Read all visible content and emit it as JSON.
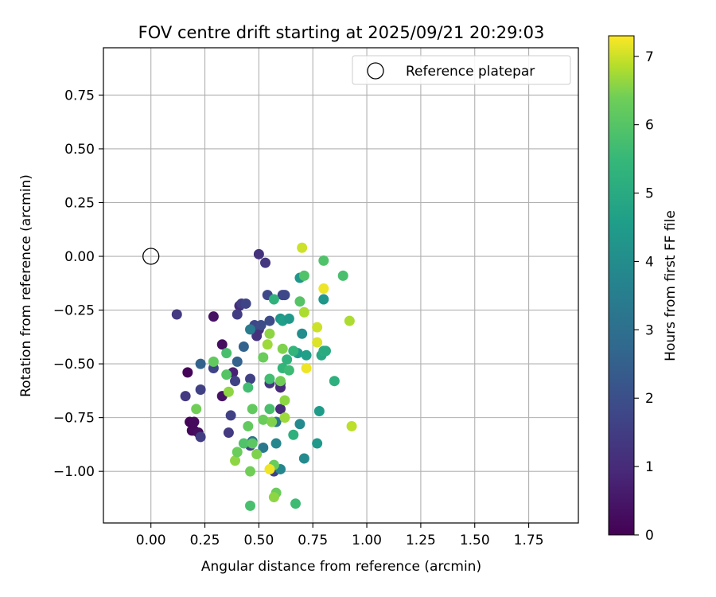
{
  "chart_data": {
    "type": "scatter",
    "title": "FOV centre drift starting at 2025/09/21 20:29:03",
    "xlabel": "Angular distance from reference (arcmin)",
    "ylabel": "Rotation from reference (arcmin)",
    "xlim": [
      -0.22,
      1.98
    ],
    "ylim": [
      -1.24,
      0.97
    ],
    "xticks": [
      0.0,
      0.25,
      0.5,
      0.75,
      1.0,
      1.25,
      1.5,
      1.75
    ],
    "xtick_labels": [
      "0.00",
      "0.25",
      "0.50",
      "0.75",
      "1.00",
      "1.25",
      "1.50",
      "1.75"
    ],
    "yticks": [
      -1.0,
      -0.75,
      -0.5,
      -0.25,
      0.0,
      0.25,
      0.5,
      0.75
    ],
    "ytick_labels": [
      "−1.00",
      "−0.75",
      "−0.50",
      "−0.25",
      "0.00",
      "0.25",
      "0.50",
      "0.75"
    ],
    "grid": true,
    "legend": {
      "placement": "top-right",
      "entries": [
        "Reference platepar"
      ]
    },
    "reference_point": {
      "x": 0.0,
      "y": 0.0,
      "label": "Reference platepar"
    },
    "colorbar": {
      "label": "Hours from first FF file",
      "colormap": "viridis",
      "min": 0,
      "max": 7.3,
      "ticks": [
        0,
        1,
        2,
        3,
        4,
        5,
        6,
        7
      ],
      "tick_labels": [
        "0",
        "1",
        "2",
        "3",
        "4",
        "5",
        "6",
        "7"
      ]
    },
    "points": [
      {
        "x": 0.17,
        "y": -0.54,
        "t": 0.1
      },
      {
        "x": 0.18,
        "y": -0.77,
        "t": 0.1
      },
      {
        "x": 0.19,
        "y": -0.81,
        "t": 0.15
      },
      {
        "x": 0.2,
        "y": -0.81,
        "t": 0.2
      },
      {
        "x": 0.2,
        "y": -0.77,
        "t": 0.2
      },
      {
        "x": 0.22,
        "y": -0.82,
        "t": 0.3
      },
      {
        "x": 0.29,
        "y": -0.28,
        "t": 0.4
      },
      {
        "x": 0.33,
        "y": -0.41,
        "t": 0.3
      },
      {
        "x": 0.33,
        "y": -0.65,
        "t": 0.4
      },
      {
        "x": 0.38,
        "y": -0.54,
        "t": 0.8
      },
      {
        "x": 0.41,
        "y": -0.23,
        "t": 1.0
      },
      {
        "x": 0.5,
        "y": 0.01,
        "t": 1.2
      },
      {
        "x": 0.53,
        "y": -0.03,
        "t": 1.3
      },
      {
        "x": 0.49,
        "y": -0.37,
        "t": 1.2
      },
      {
        "x": 0.5,
        "y": -0.34,
        "t": 1.1
      },
      {
        "x": 0.55,
        "y": -0.59,
        "t": 1.3
      },
      {
        "x": 0.6,
        "y": -0.59,
        "t": 1.2
      },
      {
        "x": 0.6,
        "y": -0.61,
        "t": 1.0
      },
      {
        "x": 0.6,
        "y": -0.71,
        "t": 1.0
      },
      {
        "x": 0.12,
        "y": -0.27,
        "t": 1.4
      },
      {
        "x": 0.16,
        "y": -0.65,
        "t": 1.4
      },
      {
        "x": 0.23,
        "y": -0.84,
        "t": 1.5
      },
      {
        "x": 0.23,
        "y": -0.62,
        "t": 1.6
      },
      {
        "x": 0.29,
        "y": -0.52,
        "t": 1.7
      },
      {
        "x": 0.36,
        "y": -0.82,
        "t": 1.4
      },
      {
        "x": 0.37,
        "y": -0.74,
        "t": 1.6
      },
      {
        "x": 0.39,
        "y": -0.58,
        "t": 1.6
      },
      {
        "x": 0.4,
        "y": -0.27,
        "t": 1.5
      },
      {
        "x": 0.42,
        "y": -0.22,
        "t": 1.5
      },
      {
        "x": 0.44,
        "y": -0.22,
        "t": 1.7
      },
      {
        "x": 0.46,
        "y": -0.57,
        "t": 1.6
      },
      {
        "x": 0.46,
        "y": -0.88,
        "t": 1.6
      },
      {
        "x": 0.48,
        "y": -0.32,
        "t": 1.8
      },
      {
        "x": 0.51,
        "y": -0.32,
        "t": 1.9
      },
      {
        "x": 0.54,
        "y": -0.18,
        "t": 1.8
      },
      {
        "x": 0.55,
        "y": -0.3,
        "t": 1.9
      },
      {
        "x": 0.57,
        "y": -1.0,
        "t": 1.6
      },
      {
        "x": 0.61,
        "y": -0.18,
        "t": 1.7
      },
      {
        "x": 0.62,
        "y": -0.18,
        "t": 1.8
      },
      {
        "x": 0.23,
        "y": -0.5,
        "t": 2.6
      },
      {
        "x": 0.4,
        "y": -0.49,
        "t": 2.6
      },
      {
        "x": 0.43,
        "y": -0.42,
        "t": 2.6
      },
      {
        "x": 0.46,
        "y": -0.34,
        "t": 3.4
      },
      {
        "x": 0.47,
        "y": -0.86,
        "t": 3.1
      },
      {
        "x": 0.52,
        "y": -0.89,
        "t": 3.3
      },
      {
        "x": 0.58,
        "y": -0.77,
        "t": 3.2
      },
      {
        "x": 0.58,
        "y": -0.87,
        "t": 3.8
      },
      {
        "x": 0.6,
        "y": -0.99,
        "t": 3.8
      },
      {
        "x": 0.6,
        "y": -0.29,
        "t": 4.3
      },
      {
        "x": 0.61,
        "y": -0.3,
        "t": 4.6
      },
      {
        "x": 0.64,
        "y": -0.29,
        "t": 4.4
      },
      {
        "x": 0.68,
        "y": -0.45,
        "t": 4.5
      },
      {
        "x": 0.69,
        "y": -0.78,
        "t": 3.9
      },
      {
        "x": 0.69,
        "y": -0.1,
        "t": 4.3
      },
      {
        "x": 0.7,
        "y": -0.36,
        "t": 4.0
      },
      {
        "x": 0.71,
        "y": -0.94,
        "t": 3.9
      },
      {
        "x": 0.72,
        "y": -0.46,
        "t": 4.6
      },
      {
        "x": 0.77,
        "y": -0.87,
        "t": 4.4
      },
      {
        "x": 0.78,
        "y": -0.72,
        "t": 4.5
      },
      {
        "x": 0.79,
        "y": -0.46,
        "t": 4.9
      },
      {
        "x": 0.8,
        "y": -0.2,
        "t": 4.3
      },
      {
        "x": 0.8,
        "y": -0.44,
        "t": 5.1
      },
      {
        "x": 0.81,
        "y": -0.44,
        "t": 5.0
      },
      {
        "x": 0.85,
        "y": -0.58,
        "t": 5.2
      },
      {
        "x": 0.61,
        "y": -0.52,
        "t": 5.4
      },
      {
        "x": 0.63,
        "y": -0.48,
        "t": 5.3
      },
      {
        "x": 0.66,
        "y": -0.83,
        "t": 5.2
      },
      {
        "x": 0.57,
        "y": -0.2,
        "t": 5.3
      },
      {
        "x": 0.66,
        "y": -0.44,
        "t": 5.4
      },
      {
        "x": 0.64,
        "y": -0.53,
        "t": 5.6
      },
      {
        "x": 0.67,
        "y": -1.15,
        "t": 5.6
      },
      {
        "x": 0.55,
        "y": -0.57,
        "t": 5.7
      },
      {
        "x": 0.45,
        "y": -0.61,
        "t": 5.7
      },
      {
        "x": 0.55,
        "y": -0.71,
        "t": 5.8
      },
      {
        "x": 0.71,
        "y": -0.09,
        "t": 5.9
      },
      {
        "x": 0.8,
        "y": -0.02,
        "t": 5.9
      },
      {
        "x": 0.89,
        "y": -0.09,
        "t": 5.8
      },
      {
        "x": 0.69,
        "y": -0.21,
        "t": 6.0
      },
      {
        "x": 0.35,
        "y": -0.45,
        "t": 5.8
      },
      {
        "x": 0.35,
        "y": -0.55,
        "t": 6.0
      },
      {
        "x": 0.43,
        "y": -0.87,
        "t": 5.9
      },
      {
        "x": 0.46,
        "y": -1.16,
        "t": 5.8
      },
      {
        "x": 0.45,
        "y": -0.79,
        "t": 6.2
      },
      {
        "x": 0.47,
        "y": -0.71,
        "t": 6.2
      },
      {
        "x": 0.47,
        "y": -0.87,
        "t": 6.1
      },
      {
        "x": 0.46,
        "y": -1.0,
        "t": 6.4
      },
      {
        "x": 0.52,
        "y": -0.47,
        "t": 6.3
      },
      {
        "x": 0.52,
        "y": -0.76,
        "t": 6.3
      },
      {
        "x": 0.57,
        "y": -0.97,
        "t": 6.3
      },
      {
        "x": 0.58,
        "y": -1.1,
        "t": 6.3
      },
      {
        "x": 0.6,
        "y": -0.58,
        "t": 6.4
      },
      {
        "x": 0.61,
        "y": -0.43,
        "t": 6.5
      },
      {
        "x": 0.62,
        "y": -0.67,
        "t": 6.6
      },
      {
        "x": 0.62,
        "y": -0.75,
        "t": 6.7
      },
      {
        "x": 0.55,
        "y": -0.36,
        "t": 6.6
      },
      {
        "x": 0.54,
        "y": -0.41,
        "t": 6.7
      },
      {
        "x": 0.29,
        "y": -0.49,
        "t": 6.2
      },
      {
        "x": 0.21,
        "y": -0.71,
        "t": 6.4
      },
      {
        "x": 0.36,
        "y": -0.63,
        "t": 6.6
      },
      {
        "x": 0.39,
        "y": -0.95,
        "t": 6.6
      },
      {
        "x": 0.4,
        "y": -0.91,
        "t": 6.3
      },
      {
        "x": 0.49,
        "y": -0.92,
        "t": 6.5
      },
      {
        "x": 0.56,
        "y": -0.77,
        "t": 6.5
      },
      {
        "x": 0.57,
        "y": -1.12,
        "t": 6.6
      },
      {
        "x": 0.71,
        "y": -0.26,
        "t": 6.8
      },
      {
        "x": 0.77,
        "y": -0.33,
        "t": 7.0
      },
      {
        "x": 0.77,
        "y": -0.4,
        "t": 7.1
      },
      {
        "x": 0.8,
        "y": -0.15,
        "t": 7.2
      },
      {
        "x": 0.7,
        "y": 0.04,
        "t": 7.0
      },
      {
        "x": 0.72,
        "y": -0.52,
        "t": 7.2
      },
      {
        "x": 0.55,
        "y": -0.99,
        "t": 7.2
      },
      {
        "x": 0.92,
        "y": -0.3,
        "t": 6.8
      },
      {
        "x": 0.93,
        "y": -0.79,
        "t": 6.9
      }
    ]
  }
}
